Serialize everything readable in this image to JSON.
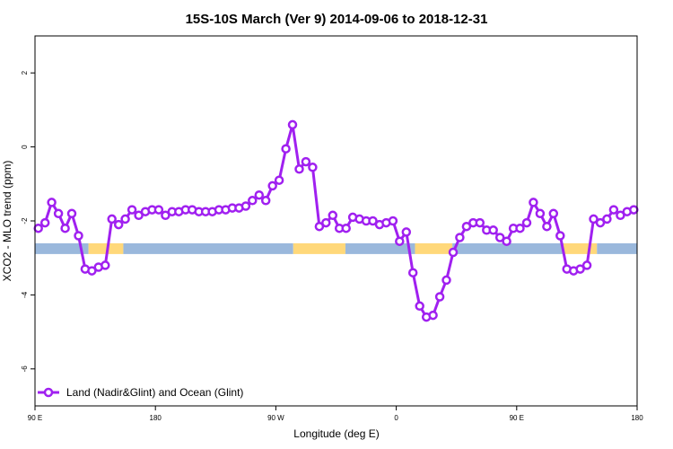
{
  "chart_data": {
    "type": "line",
    "title": "15S-10S March (Ver 9)   2014-09-06 to 2018-12-31",
    "xlabel": "Longitude (deg E)",
    "ylabel": "XCO2 - MLO trend (ppm)",
    "xlim": [
      -90,
      360
    ],
    "ylim": [
      -7,
      3
    ],
    "x_ticks": [
      {
        "value": -90,
        "label": "90 E"
      },
      {
        "value": 0,
        "label": "180"
      },
      {
        "value": 90,
        "label": "90 W"
      },
      {
        "value": 180,
        "label": "0"
      },
      {
        "value": 270,
        "label": "90 E"
      },
      {
        "value": 360,
        "label": "180"
      }
    ],
    "y_ticks": [
      {
        "value": 2,
        "label": "2"
      },
      {
        "value": 0,
        "label": "0"
      },
      {
        "value": -2,
        "label": "-2"
      },
      {
        "value": -4,
        "label": "-4"
      },
      {
        "value": -6,
        "label": "-6"
      }
    ],
    "grid": false,
    "legend_position": "bottom-left",
    "colors": {
      "series": "#a020f0",
      "ocean": "#9ab8dc",
      "land": "#ffd87a"
    },
    "series": [
      {
        "name": "Land (Nadir&Glint) and Ocean (Glint)",
        "x": [
          -87.5,
          -82.5,
          -77.5,
          -72.5,
          -67.5,
          -62.5,
          -57.5,
          -52.5,
          -47.5,
          -42.5,
          -37.5,
          -32.5,
          -27.5,
          -22.5,
          -17.5,
          -12.5,
          -7.5,
          -2.5,
          2.5,
          7.5,
          12.5,
          17.5,
          22.5,
          27.5,
          32.5,
          37.5,
          42.5,
          47.5,
          52.5,
          57.5,
          62.5,
          67.5,
          72.5,
          77.5,
          82.5,
          87.5,
          92.5,
          97.5,
          102.5,
          107.5,
          112.5,
          117.5,
          122.5,
          127.5,
          132.5,
          137.5,
          142.5,
          147.5,
          152.5,
          157.5,
          162.5,
          167.5,
          172.5,
          177.5,
          182.5,
          187.5,
          192.5,
          197.5,
          202.5,
          207.5,
          212.5,
          217.5,
          222.5,
          227.5,
          232.5,
          237.5,
          242.5,
          247.5,
          252.5,
          257.5,
          262.5,
          267.5,
          272.5,
          277.5,
          282.5,
          287.5,
          292.5,
          297.5,
          302.5,
          307.5,
          312.5,
          317.5,
          322.5,
          327.5,
          332.5,
          337.5,
          342.5,
          347.5,
          352.5,
          357.5
        ],
        "y": [
          -2.2,
          -2.05,
          -1.5,
          -1.8,
          -2.2,
          -1.8,
          -2.4,
          -3.3,
          -3.35,
          -3.25,
          -3.2,
          -1.95,
          -2.1,
          -1.95,
          -1.7,
          -1.85,
          -1.75,
          -1.7,
          -1.7,
          -1.85,
          -1.75,
          -1.75,
          -1.7,
          -1.7,
          -1.75,
          -1.75,
          -1.75,
          -1.7,
          -1.7,
          -1.65,
          -1.65,
          -1.6,
          -1.45,
          -1.3,
          -1.45,
          -1.05,
          -0.9,
          -0.05,
          0.6,
          -0.6,
          -0.4,
          -0.55,
          -2.15,
          -2.05,
          -1.85,
          -2.2,
          -2.2,
          -1.9,
          -1.95,
          -2.0,
          -2.0,
          -2.1,
          -2.05,
          -2.0,
          -2.55,
          -2.3,
          -3.4,
          -4.3,
          -4.6,
          -4.55,
          -4.05,
          -3.6,
          -2.85,
          -2.45,
          -2.15,
          -2.05,
          -2.05,
          -2.25,
          -2.25,
          -2.45,
          -2.55,
          -2.2,
          -2.2,
          -2.05,
          -1.5,
          -1.8,
          -2.15,
          -1.8,
          -2.4,
          -3.3,
          -3.35,
          -3.3,
          -3.2,
          -1.95,
          -2.05,
          -1.95,
          -1.7,
          -1.85,
          -1.75,
          -1.7
        ]
      }
    ],
    "surface_bar": {
      "y_center": -2.75,
      "segments": [
        {
          "type": "ocean",
          "x": [
            -90,
            -50
          ]
        },
        {
          "type": "land",
          "x": [
            -50,
            -24
          ]
        },
        {
          "type": "ocean",
          "x": [
            -24,
            103
          ]
        },
        {
          "type": "land",
          "x": [
            103,
            142
          ]
        },
        {
          "type": "ocean",
          "x": [
            142,
            194
          ]
        },
        {
          "type": "land",
          "x": [
            194,
            222
          ]
        },
        {
          "type": "ocean",
          "x": [
            222,
            305
          ]
        },
        {
          "type": "land",
          "x": [
            305,
            330
          ]
        },
        {
          "type": "ocean",
          "x": [
            330,
            360
          ]
        }
      ]
    }
  }
}
